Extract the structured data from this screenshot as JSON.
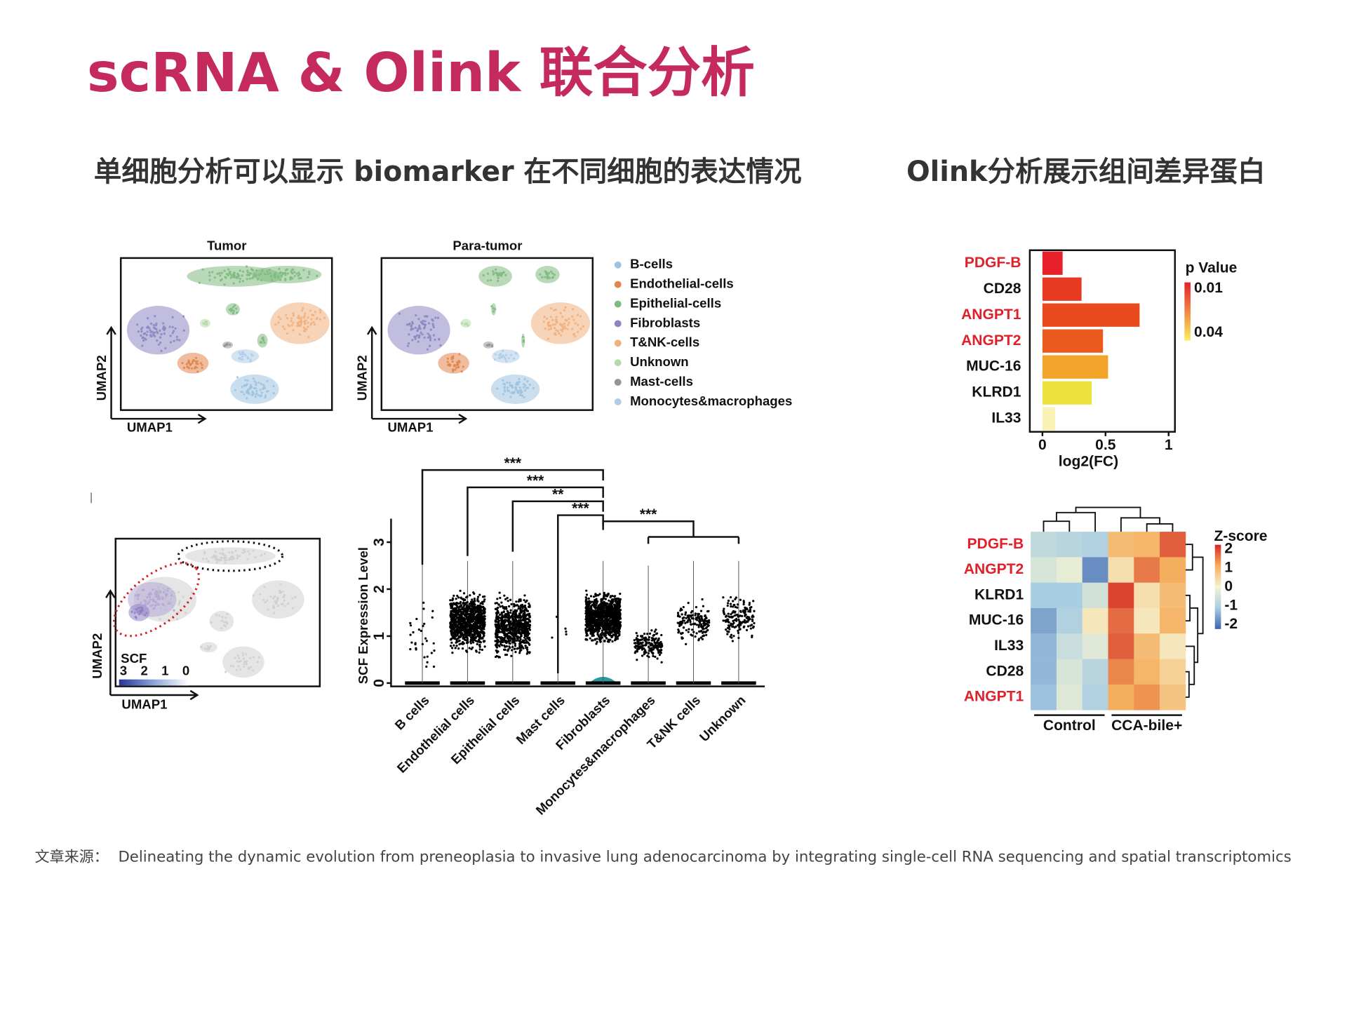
{
  "header": {
    "title": "scRNA & Olink 联合分析"
  },
  "sections": {
    "left_heading": "单细胞分析可以显示 biomarker 在不同细胞的表达情况",
    "right_heading": "Olink分析展示组间差异蛋白"
  },
  "umap": {
    "panels": [
      "Tumor",
      "Para-tumor"
    ],
    "x_label": "UMAP1",
    "y_label": "UMAP2",
    "legend": [
      {
        "name": "B-cells",
        "color": "#9ec3e0"
      },
      {
        "name": "Endothelial-cells",
        "color": "#e2864f"
      },
      {
        "name": "Epithelial-cells",
        "color": "#7fba7f"
      },
      {
        "name": "Fibroblasts",
        "color": "#8e86c2"
      },
      {
        "name": "T&NK-cells",
        "color": "#f0b07e"
      },
      {
        "name": "Unknown",
        "color": "#b4dcaa"
      },
      {
        "name": "Mast-cells",
        "color": "#959595"
      },
      {
        "name": "Monocytes&macrophages",
        "color": "#b0cce8"
      }
    ],
    "scf_label": "SCF",
    "scf_ticks": [
      3,
      2,
      1,
      0
    ]
  },
  "chart_data": [
    {
      "type": "barh",
      "categories": [
        "PDGF-B",
        "CD28",
        "ANGPT1",
        "ANGPT2",
        "MUC-16",
        "KLRD1",
        "IL33"
      ],
      "values": [
        0.16,
        0.31,
        0.77,
        0.48,
        0.52,
        0.39,
        0.1
      ],
      "colors": [
        "#e8202a",
        "#e83a22",
        "#e84a1e",
        "#ea5a1c",
        "#f2a42a",
        "#ece23c",
        "#f8f2b4"
      ],
      "label_colors": [
        "#e0202a",
        "#111111",
        "#e0202a",
        "#e0202a",
        "#111111",
        "#111111",
        "#111111"
      ],
      "xlim": [
        -0.1,
        1.05
      ],
      "xticks": [
        0,
        0.5,
        1
      ],
      "x_label": "log2(FC)",
      "legend_title": "p Value",
      "colorbar_colors": [
        "#e8202a",
        "#f8f060"
      ],
      "colorbar_ticks": [
        0.01,
        0.04
      ]
    },
    {
      "type": "heatmap",
      "rows": [
        "PDGF-B",
        "ANGPT2",
        "KLRD1",
        "MUC-16",
        "IL33",
        "CD28",
        "ANGPT1"
      ],
      "label_colors": [
        "#e0202a",
        "#e0202a",
        "#111111",
        "#111111",
        "#111111",
        "#111111",
        "#e0202a"
      ],
      "groups": [
        "Control",
        "CCA-bile+"
      ],
      "values": [
        [
          -0.7,
          -0.8,
          -0.9,
          0.8,
          0.9,
          1.6
        ],
        [
          -0.4,
          -0.2,
          -1.6,
          0.3,
          1.4,
          1.0
        ],
        [
          -1.0,
          -1.0,
          -0.5,
          1.8,
          0.3,
          0.8
        ],
        [
          -1.4,
          -0.9,
          0.2,
          1.5,
          0.2,
          0.9
        ],
        [
          -1.2,
          -0.6,
          -0.3,
          1.6,
          0.8,
          0.2
        ],
        [
          -1.2,
          -0.4,
          -0.8,
          1.3,
          0.9,
          0.5
        ],
        [
          -1.1,
          -0.3,
          -0.9,
          1.0,
          1.2,
          0.7
        ]
      ],
      "legend_title": "Z-score",
      "zlim": [
        -2,
        2
      ],
      "zticks": [
        2,
        1,
        0,
        -1,
        -2
      ],
      "colorscale": [
        "#3d63ad",
        "#a9cde2",
        "#f6f4d2",
        "#f5ae5e",
        "#d42a26"
      ]
    },
    {
      "type": "strip",
      "y_label": "SCF Expression Level",
      "categories": [
        "B cells",
        "Endothelial cells",
        "Epithelial cells",
        "Mast cells",
        "Fibroblasts",
        "Monocytes&macrophages",
        "T&NK cells",
        "Unknown"
      ],
      "ylim": [
        -0.07,
        3.5
      ],
      "yticks": [
        0,
        1,
        2,
        3
      ],
      "significance": [
        "***",
        "***",
        "**",
        "***",
        "***"
      ]
    }
  ],
  "footer": {
    "source_label": "文章来源：",
    "source": "Delineating the dynamic evolution from preneoplasia to invasive lung adenocarcinoma by integrating single-cell RNA sequencing and spatial transcriptomics"
  }
}
